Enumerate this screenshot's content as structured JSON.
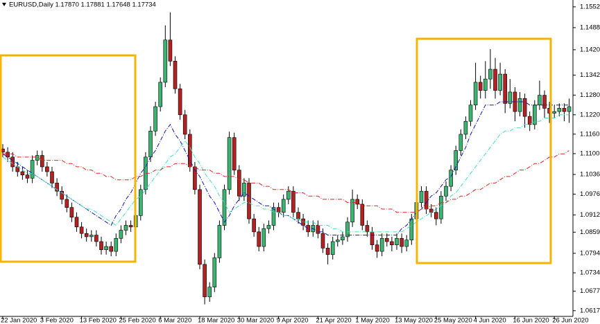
{
  "chart_data": {
    "type": "candlestick",
    "title": "EURUSD,Daily  1.17870 1.17881 1.17648 1.17734",
    "categories": [
      "22 Jan 2020",
      null,
      null,
      null,
      null,
      null,
      null,
      null,
      "3 Feb 2020",
      null,
      null,
      null,
      null,
      null,
      null,
      null,
      "13 Feb 2020",
      null,
      null,
      null,
      null,
      null,
      null,
      null,
      "25 Feb 2020",
      null,
      null,
      null,
      null,
      null,
      null,
      null,
      "6 Mar 2020",
      null,
      null,
      null,
      null,
      null,
      null,
      null,
      "18 Mar 2020",
      null,
      null,
      null,
      null,
      null,
      null,
      null,
      "30 Mar 2020",
      null,
      null,
      null,
      null,
      null,
      null,
      null,
      "9 Apr 2020",
      null,
      null,
      null,
      null,
      null,
      null,
      null,
      "21 Apr 2020",
      null,
      null,
      null,
      null,
      null,
      null,
      null,
      "1 May 2020",
      null,
      null,
      null,
      null,
      null,
      null,
      null,
      "13 May 2020",
      null,
      null,
      null,
      null,
      null,
      null,
      null,
      "25 May 2020",
      null,
      null,
      null,
      null,
      null,
      null,
      null,
      "4 Jun 2020",
      null,
      null,
      null,
      null,
      null,
      null,
      null,
      "16 Jun 2020",
      null,
      null,
      null,
      null,
      null,
      null,
      null,
      "26 Jun 2020",
      null,
      null,
      null
    ],
    "open": [
      1.1115,
      1.1105,
      1.109,
      1.106,
      1.1045,
      1.1035,
      1.1025,
      1.108,
      1.1095,
      1.106,
      1.1045,
      1.101,
      1.0985,
      1.096,
      1.0935,
      1.0905,
      1.0875,
      1.0855,
      1.0845,
      1.085,
      1.083,
      1.0805,
      1.0815,
      1.08,
      1.084,
      1.0865,
      1.088,
      1.0875,
      1.091,
      1.099,
      1.109,
      1.117,
      1.1245,
      1.132,
      1.145,
      1.1385,
      1.13,
      1.122,
      1.116,
      1.106,
      1.099,
      1.076,
      1.066,
      1.069,
      1.078,
      1.088,
      1.099,
      1.115,
      1.105,
      1.097,
      1.101,
      1.09,
      1.086,
      1.0815,
      1.087,
      1.088,
      1.0935,
      1.092,
      1.096,
      1.0985,
      1.092,
      1.09,
      1.088,
      1.086,
      1.088,
      1.0855,
      1.081,
      1.079,
      1.083,
      1.0835,
      1.0845,
      1.089,
      1.096,
      1.0945,
      1.088,
      1.086,
      1.082,
      1.08,
      1.084,
      1.083,
      1.082,
      1.084,
      1.0815,
      1.0835,
      1.09,
      1.095,
      1.0985,
      1.093,
      1.092,
      1.09,
      1.097,
      1.1,
      1.105,
      1.111,
      1.116,
      1.12,
      1.125,
      1.132,
      1.1295,
      1.133,
      1.136,
      1.1295,
      1.1345,
      1.1255,
      1.129,
      1.123,
      1.127,
      1.1215,
      1.119,
      1.125,
      1.128,
      1.124,
      1.1225,
      1.123,
      1.124,
      1.123
    ],
    "high": [
      1.113,
      1.112,
      1.1105,
      1.1075,
      1.106,
      1.105,
      1.1095,
      1.111,
      1.111,
      1.1075,
      1.106,
      1.1025,
      1.1,
      1.0975,
      1.095,
      1.092,
      1.089,
      1.087,
      1.0865,
      1.0865,
      1.0845,
      1.083,
      1.083,
      1.0855,
      1.088,
      1.0895,
      1.0895,
      1.0925,
      1.1005,
      1.1105,
      1.1185,
      1.126,
      1.1335,
      1.1495,
      1.1535,
      1.14,
      1.1315,
      1.1235,
      1.1175,
      1.1075,
      1.1005,
      1.0775,
      1.0705,
      1.0795,
      1.0895,
      1.1005,
      1.1168,
      1.1165,
      1.1065,
      1.1025,
      1.1025,
      1.0915,
      1.0875,
      1.0885,
      1.0895,
      1.095,
      1.095,
      1.0975,
      1.1,
      1.1,
      1.0935,
      1.0915,
      1.0895,
      1.0895,
      1.0895,
      1.087,
      1.0825,
      1.0845,
      1.085,
      1.086,
      1.0905,
      1.099,
      1.0975,
      1.096,
      1.0895,
      1.0875,
      1.0835,
      1.0855,
      1.0855,
      1.0845,
      1.0855,
      1.0855,
      1.085,
      1.0915,
      1.0965,
      1.1,
      1.1,
      1.0945,
      1.0935,
      1.0985,
      1.1015,
      1.1065,
      1.1125,
      1.1175,
      1.1215,
      1.1265,
      1.138,
      1.134,
      1.1385,
      1.1422,
      1.1395,
      1.138,
      1.136,
      1.133,
      1.1305,
      1.129,
      1.1285,
      1.123,
      1.1265,
      1.1325,
      1.1295,
      1.126,
      1.125,
      1.1255,
      1.1255,
      1.127
    ],
    "low": [
      1.109,
      1.1075,
      1.1045,
      1.103,
      1.102,
      1.101,
      1.101,
      1.1065,
      1.1045,
      1.103,
      1.0995,
      1.097,
      1.0945,
      1.092,
      1.089,
      1.086,
      1.084,
      1.083,
      1.083,
      1.0815,
      1.079,
      1.079,
      1.0785,
      1.0785,
      1.0825,
      1.085,
      1.086,
      1.086,
      1.0895,
      1.0975,
      1.1075,
      1.1155,
      1.123,
      1.1305,
      1.137,
      1.1285,
      1.1205,
      1.1145,
      1.1045,
      1.0975,
      1.0745,
      1.0637,
      1.0645,
      1.0675,
      1.0765,
      1.0865,
      1.0975,
      1.1035,
      1.0955,
      1.0955,
      1.0885,
      1.0845,
      1.08,
      1.08,
      1.0855,
      1.0865,
      1.0905,
      1.0905,
      1.0945,
      1.0905,
      1.0885,
      1.0865,
      1.0845,
      1.0845,
      1.084,
      1.0795,
      1.076,
      1.0775,
      1.0815,
      1.082,
      1.083,
      1.0875,
      1.093,
      1.0865,
      1.0845,
      1.0805,
      1.078,
      1.0785,
      1.0815,
      1.08,
      1.0805,
      1.0795,
      1.08,
      1.082,
      1.0885,
      1.0935,
      1.0915,
      1.0905,
      1.088,
      1.0885,
      1.0955,
      1.0985,
      1.1035,
      1.1095,
      1.1145,
      1.1185,
      1.1235,
      1.127,
      1.127,
      1.13,
      1.127,
      1.128,
      1.1225,
      1.124,
      1.12,
      1.1215,
      1.118,
      1.117,
      1.1175,
      1.1235,
      1.121,
      1.1195,
      1.121,
      1.1215,
      1.12,
      1.1195
    ],
    "close": [
      1.1105,
      1.109,
      1.106,
      1.1045,
      1.1035,
      1.1025,
      1.108,
      1.1095,
      1.106,
      1.1045,
      1.101,
      1.0985,
      1.096,
      1.0935,
      1.0905,
      1.0875,
      1.0855,
      1.0845,
      1.085,
      1.083,
      1.0805,
      1.0815,
      1.08,
      1.084,
      1.0865,
      1.088,
      1.0875,
      1.091,
      1.099,
      1.109,
      1.117,
      1.1245,
      1.132,
      1.145,
      1.1385,
      1.13,
      1.122,
      1.116,
      1.106,
      1.099,
      1.076,
      1.066,
      1.069,
      1.078,
      1.088,
      1.099,
      1.115,
      1.105,
      1.097,
      1.101,
      1.09,
      1.086,
      1.0815,
      1.087,
      1.088,
      1.0935,
      1.092,
      1.096,
      1.0985,
      1.092,
      1.09,
      1.088,
      1.086,
      1.088,
      1.0855,
      1.081,
      1.079,
      1.083,
      1.0835,
      1.0845,
      1.089,
      1.096,
      1.0945,
      1.088,
      1.086,
      1.082,
      1.08,
      1.084,
      1.083,
      1.082,
      1.084,
      1.0815,
      1.0835,
      1.09,
      1.095,
      1.0985,
      1.093,
      1.092,
      1.09,
      1.097,
      1.1,
      1.105,
      1.111,
      1.116,
      1.12,
      1.125,
      1.132,
      1.1295,
      1.133,
      1.136,
      1.1295,
      1.1345,
      1.1255,
      1.129,
      1.123,
      1.127,
      1.1215,
      1.119,
      1.125,
      1.128,
      1.124,
      1.1225,
      1.123,
      1.124,
      1.123,
      1.1245
    ],
    "up_color": "#3cb371",
    "down_color": "#b22222",
    "lines": [
      {
        "color": "#1010c0",
        "values": [
          1.11,
          1.109,
          1.108,
          1.107,
          1.106,
          1.105,
          1.104,
          1.103,
          1.102,
          1.101,
          1.1,
          1.099,
          1.098,
          1.097,
          1.096,
          1.095,
          1.094,
          1.093,
          1.092,
          1.091,
          1.09,
          1.089,
          1.088,
          1.091,
          1.093,
          1.096,
          1.098,
          1.101,
          1.104,
          1.106,
          1.109,
          1.111,
          1.114,
          1.117,
          1.119,
          1.116,
          1.114,
          1.111,
          1.108,
          1.105,
          1.103,
          1.1,
          1.097,
          1.095,
          1.092,
          1.089,
          1.091,
          1.094,
          1.096,
          1.098,
          1.097,
          1.096,
          1.095,
          1.094,
          1.094,
          1.093,
          1.092,
          1.091,
          1.091,
          1.09,
          1.089,
          1.088,
          1.087,
          1.087,
          1.086,
          1.086,
          1.085,
          1.085,
          1.085,
          1.085,
          1.085,
          1.085,
          1.085,
          1.085,
          1.085,
          1.085,
          1.085,
          1.085,
          1.085,
          1.085,
          1.085,
          1.087,
          1.088,
          1.09,
          1.092,
          1.093,
          1.095,
          1.097,
          1.098,
          1.1,
          1.102,
          1.103,
          1.106,
          1.109,
          1.112,
          1.116,
          1.119,
          1.122,
          1.125,
          1.125,
          1.125,
          1.126,
          1.126,
          1.126,
          1.126,
          1.126,
          1.126,
          1.125,
          1.125,
          1.125,
          1.125,
          1.125,
          1.125,
          1.125,
          1.125,
          1.125
        ]
      },
      {
        "color": "#40e0c0",
        "values": [
          1.109,
          1.108,
          1.107,
          1.106,
          1.105,
          1.104,
          1.104,
          1.103,
          1.102,
          1.101,
          1.1,
          1.099,
          1.098,
          1.097,
          1.096,
          1.095,
          1.094,
          1.093,
          1.093,
          1.092,
          1.091,
          1.09,
          1.089,
          1.088,
          1.09,
          1.092,
          1.094,
          1.096,
          1.097,
          1.099,
          1.101,
          1.103,
          1.105,
          1.107,
          1.109,
          1.11,
          1.112,
          1.114,
          1.112,
          1.109,
          1.107,
          1.104,
          1.102,
          1.1,
          1.097,
          1.095,
          1.092,
          1.093,
          1.094,
          1.095,
          1.095,
          1.094,
          1.094,
          1.093,
          1.093,
          1.092,
          1.092,
          1.091,
          1.091,
          1.09,
          1.09,
          1.089,
          1.089,
          1.089,
          1.088,
          1.088,
          1.088,
          1.087,
          1.087,
          1.086,
          1.086,
          1.086,
          1.086,
          1.086,
          1.086,
          1.086,
          1.086,
          1.086,
          1.086,
          1.086,
          1.086,
          1.086,
          1.087,
          1.088,
          1.089,
          1.09,
          1.091,
          1.092,
          1.093,
          1.094,
          1.095,
          1.097,
          1.098,
          1.1,
          1.102,
          1.104,
          1.106,
          1.108,
          1.11,
          1.112,
          1.114,
          1.116,
          1.117,
          1.117,
          1.118,
          1.118,
          1.119,
          1.119,
          1.12,
          1.12,
          1.121,
          1.121,
          1.121,
          1.122,
          1.122,
          1.122
        ]
      },
      {
        "color": "#e02020",
        "values": [
          1.11,
          1.11,
          1.11,
          1.109,
          1.109,
          1.109,
          1.109,
          1.109,
          1.108,
          1.108,
          1.108,
          1.108,
          1.108,
          1.107,
          1.107,
          1.106,
          1.106,
          1.105,
          1.105,
          1.104,
          1.104,
          1.103,
          1.103,
          1.102,
          1.102,
          1.102,
          1.102,
          1.103,
          1.103,
          1.104,
          1.104,
          1.105,
          1.105,
          1.106,
          1.106,
          1.107,
          1.107,
          1.107,
          1.106,
          1.106,
          1.105,
          1.105,
          1.105,
          1.104,
          1.104,
          1.103,
          1.103,
          1.103,
          1.102,
          1.102,
          1.101,
          1.101,
          1.101,
          1.1,
          1.1,
          1.099,
          1.099,
          1.099,
          1.099,
          1.098,
          1.098,
          1.098,
          1.097,
          1.097,
          1.097,
          1.096,
          1.096,
          1.096,
          1.096,
          1.096,
          1.095,
          1.095,
          1.095,
          1.094,
          1.094,
          1.094,
          1.094,
          1.093,
          1.093,
          1.093,
          1.092,
          1.092,
          1.092,
          1.092,
          1.092,
          1.093,
          1.093,
          1.094,
          1.094,
          1.095,
          1.095,
          1.096,
          1.096,
          1.097,
          1.097,
          1.098,
          1.099,
          1.099,
          1.1,
          1.101,
          1.101,
          1.102,
          1.103,
          1.103,
          1.104,
          1.105,
          1.105,
          1.106,
          1.107,
          1.107,
          1.108,
          1.109,
          1.109,
          1.11,
          1.11,
          1.111
        ]
      }
    ],
    "ylim": [
      1.06,
      1.1573
    ],
    "yticks": [
      {
        "value": 1.1552,
        "label": "1.15520"
      },
      {
        "value": 1.1488,
        "label": "1.14880"
      },
      {
        "value": 1.142,
        "label": "1.14200"
      },
      {
        "value": 1.1342,
        "label": "1.13420"
      },
      {
        "value": 1.12805,
        "label": "1.12805"
      },
      {
        "value": 1.122,
        "label": "1.12200"
      },
      {
        "value": 1.11605,
        "label": "1.11605"
      },
      {
        "value": 1.11005,
        "label": "1.11005"
      },
      {
        "value": 1.10365,
        "label": "1.10365"
      },
      {
        "value": 1.0976,
        "label": "1.09760"
      },
      {
        "value": 1.0912,
        "label": "1.09120"
      },
      {
        "value": 1.0859,
        "label": "1.08590"
      },
      {
        "value": 1.0794,
        "label": "1.07940"
      },
      {
        "value": 1.0734,
        "label": "1.07340"
      },
      {
        "value": 1.06775,
        "label": "1.06775"
      },
      {
        "value": 1.06175,
        "label": "1.06175"
      }
    ]
  }
}
